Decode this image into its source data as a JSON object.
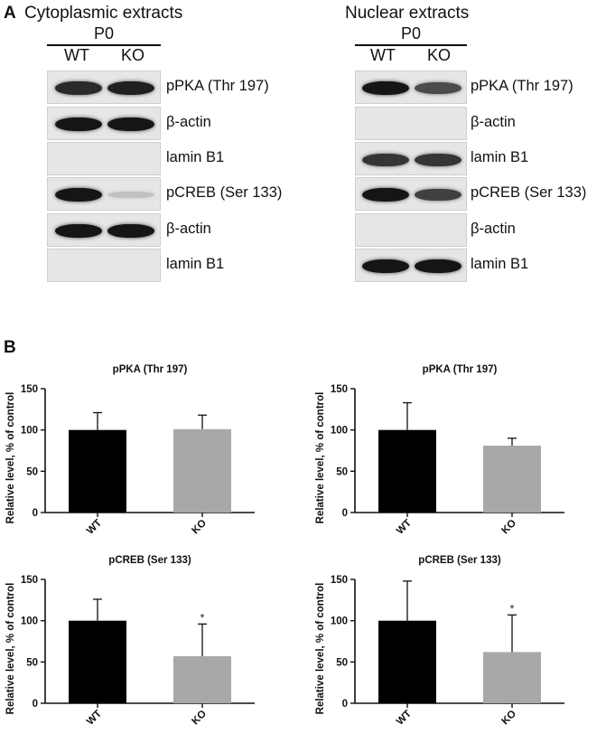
{
  "panel_a": {
    "letter": "A",
    "stage": "P0",
    "lanes": [
      "WT",
      "KO"
    ],
    "cytoplasmic": {
      "title": "Cytoplasmic extracts",
      "rows": [
        {
          "label": "pPKA (Thr 197)",
          "bands": [
            0.85,
            0.9
          ]
        },
        {
          "label": "β-actin",
          "bands": [
            0.95,
            0.95
          ]
        },
        {
          "label": "lamin B1",
          "bands": [
            0,
            0
          ]
        },
        {
          "label": "pCREB (Ser 133)",
          "bands": [
            0.95,
            0.15
          ]
        },
        {
          "label": "β-actin",
          "bands": [
            0.95,
            0.95
          ]
        },
        {
          "label": "lamin B1",
          "bands": [
            0,
            0
          ]
        }
      ]
    },
    "nuclear": {
      "title": "Nuclear extracts",
      "rows": [
        {
          "label": "pPKA (Thr 197)",
          "bands": [
            0.95,
            0.7
          ]
        },
        {
          "label": "β-actin",
          "bands": [
            0,
            0
          ]
        },
        {
          "label": "lamin B1",
          "bands": [
            0.8,
            0.8
          ]
        },
        {
          "label": "pCREB (Ser 133)",
          "bands": [
            0.95,
            0.75
          ]
        },
        {
          "label": "β-actin",
          "bands": [
            0,
            0
          ]
        },
        {
          "label": "lamin B1",
          "bands": [
            0.95,
            0.95
          ]
        }
      ]
    }
  },
  "panel_b": {
    "letter": "B"
  },
  "chart_data": [
    {
      "type": "bar",
      "title": "pPKA (Thr 197)",
      "ylabel": "Relative level, % of control",
      "categories": [
        "WT",
        "KO"
      ],
      "values": [
        100,
        101
      ],
      "errors": [
        21,
        17
      ],
      "colors": [
        "#000000",
        "#a8a8a8"
      ],
      "significance": [
        "",
        ""
      ],
      "ylim": [
        0,
        150
      ],
      "yticks": [
        0,
        50,
        100,
        150
      ]
    },
    {
      "type": "bar",
      "title": "pPKA (Thr 197)",
      "ylabel": "Relative level, % of control",
      "categories": [
        "WT",
        "KO"
      ],
      "values": [
        100,
        81
      ],
      "errors": [
        33,
        9
      ],
      "colors": [
        "#000000",
        "#a8a8a8"
      ],
      "significance": [
        "",
        ""
      ],
      "ylim": [
        0,
        150
      ],
      "yticks": [
        0,
        50,
        100,
        150
      ]
    },
    {
      "type": "bar",
      "title": "pCREB (Ser 133)",
      "ylabel": "Relative level, % of control",
      "categories": [
        "WT",
        "KO"
      ],
      "values": [
        100,
        57
      ],
      "errors": [
        26,
        39
      ],
      "colors": [
        "#000000",
        "#a8a8a8"
      ],
      "significance": [
        "",
        "*"
      ],
      "ylim": [
        0,
        150
      ],
      "yticks": [
        0,
        50,
        100,
        150
      ]
    },
    {
      "type": "bar",
      "title": "pCREB (Ser 133)",
      "ylabel": "Relative level, % of control",
      "categories": [
        "WT",
        "KO"
      ],
      "values": [
        100,
        62
      ],
      "errors": [
        48,
        45
      ],
      "colors": [
        "#000000",
        "#a8a8a8"
      ],
      "significance": [
        "",
        "*"
      ],
      "ylim": [
        0,
        150
      ],
      "yticks": [
        0,
        50,
        100,
        150
      ]
    }
  ]
}
